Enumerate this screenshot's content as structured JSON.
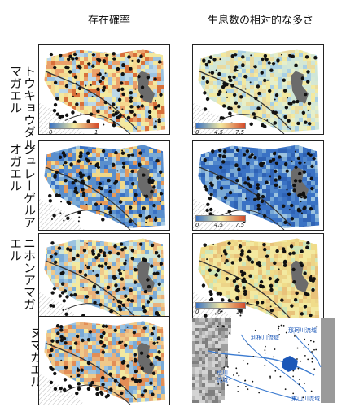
{
  "headers": {
    "left": "存在確率",
    "right": "生息数の相対的な多さ"
  },
  "species": [
    {
      "label": "トウキョウダルマガエル",
      "line1": "トウキョウ",
      "line2": "ダルマガエル",
      "left_ticks": [
        "0",
        "1"
      ],
      "right_ticks": [
        "0",
        "4.5",
        "7.5"
      ]
    },
    {
      "label": "シュレーゲルアオガエル",
      "line1": "シュレーゲル",
      "line2": "アオガエル",
      "left_ticks": [
        "0",
        "1"
      ],
      "right_ticks": [
        "0",
        "4.5",
        "7.5"
      ]
    },
    {
      "label": "ニホンアマガエル",
      "line1": "ニホン",
      "line2": "アマガエル",
      "left_ticks": [],
      "right_ticks": [
        "0",
        "6",
        "10"
      ]
    },
    {
      "label": "ヌマガエル",
      "line1": "ヌマガエル",
      "line2": "",
      "left_ticks": [],
      "right_ticks": []
    }
  ],
  "reference_map": {
    "labels": {
      "tone": "利根川流域",
      "naka": "那珂川流域",
      "ara": "荒川\n流域",
      "ara_l1": "荒川",
      "ara_l2": "流域",
      "kuji": "久慈川流域",
      "ibaraki": "東山川流域"
    }
  },
  "colors": {
    "low": "#3a72c4",
    "mid": "#f3e9a0",
    "high": "#d44a2a",
    "lake": "#6b6b6b",
    "dot": "#111111",
    "river": "#3a7ad0"
  }
}
